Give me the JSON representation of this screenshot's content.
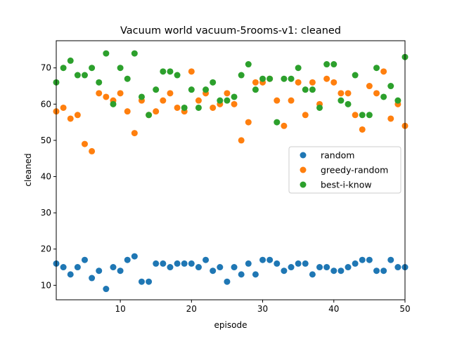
{
  "chart_data": {
    "type": "scatter",
    "title": "Vacuum world vacuum-5rooms-v1: cleaned",
    "xlabel": "episode",
    "ylabel": "cleaned",
    "xlim": [
      1,
      50
    ],
    "ylim": [
      6,
      77.5
    ],
    "xticks": [
      10,
      20,
      30,
      40,
      50
    ],
    "yticks": [
      10,
      20,
      30,
      40,
      50,
      60,
      70
    ],
    "grid": false,
    "legend_position": "center-right",
    "x": [
      1,
      2,
      3,
      4,
      5,
      6,
      7,
      8,
      9,
      10,
      11,
      12,
      13,
      14,
      15,
      16,
      17,
      18,
      19,
      20,
      21,
      22,
      23,
      24,
      25,
      26,
      27,
      28,
      29,
      30,
      31,
      32,
      33,
      34,
      35,
      36,
      37,
      38,
      39,
      40,
      41,
      42,
      43,
      44,
      45,
      46,
      47,
      48,
      49,
      50
    ],
    "series": [
      {
        "name": "random",
        "color": "#1f77b4",
        "values": [
          16,
          15,
          13,
          15,
          17,
          12,
          14,
          9,
          15,
          14,
          17,
          18,
          11,
          11,
          16,
          16,
          15,
          16,
          16,
          16,
          15,
          17,
          14,
          15,
          11,
          15,
          13,
          16,
          13,
          17,
          17,
          16,
          14,
          15,
          16,
          16,
          13,
          15,
          15,
          14,
          14,
          15,
          16,
          17,
          17,
          14,
          14,
          17,
          15,
          15
        ]
      },
      {
        "name": "greedy-random",
        "color": "#ff7f0e",
        "values": [
          58,
          59,
          56,
          57,
          49,
          47,
          63,
          62,
          61,
          63,
          58,
          52,
          61,
          57,
          58,
          61,
          63,
          59,
          58,
          69,
          61,
          63,
          59,
          60,
          63,
          60,
          50,
          55,
          66,
          66,
          67,
          61,
          54,
          61,
          66,
          57,
          66,
          60,
          67,
          66,
          63,
          63,
          57,
          53,
          65,
          63,
          69,
          56,
          60,
          54
        ]
      },
      {
        "name": "best-i-know",
        "color": "#2ca02c",
        "values": [
          66,
          70,
          72,
          68,
          68,
          70,
          66,
          74,
          60,
          70,
          67,
          74,
          62,
          57,
          64,
          69,
          69,
          68,
          59,
          64,
          59,
          64,
          66,
          61,
          61,
          62,
          68,
          71,
          64,
          67,
          67,
          55,
          67,
          67,
          70,
          64,
          64,
          59,
          71,
          71,
          61,
          60,
          68,
          57,
          57,
          70,
          62,
          65,
          61,
          73
        ]
      }
    ]
  }
}
